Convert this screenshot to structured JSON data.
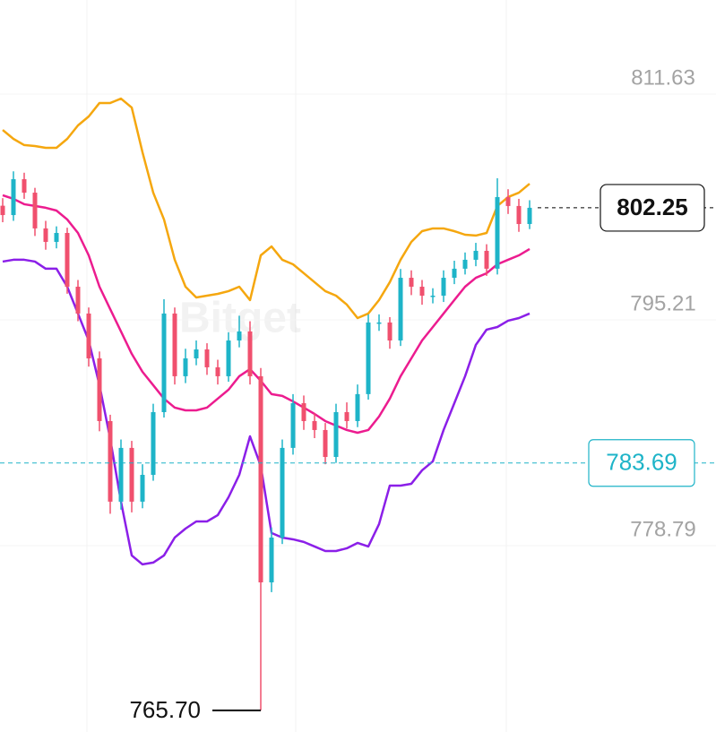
{
  "chart_data": {
    "type": "candlestick",
    "watermark": "Bitget",
    "ylim": [
      764.13,
      817.36
    ],
    "yticks": [
      811.63,
      795.21,
      778.79
    ],
    "grid": true,
    "up_color": "#1eb4c8",
    "down_color": "#f0506e",
    "open": [
      802.4,
      801.72,
      804.33,
      803.35,
      800.75,
      799.77,
      800.42,
      796.51,
      794.56,
      791.3,
      786.74,
      780.88,
      784.79,
      780.88,
      782.83,
      787.39,
      794.56,
      790.0,
      791.3,
      791.95,
      790.65,
      790.0,
      792.6,
      793.26,
      790.0,
      775.01,
      778.27,
      784.79,
      788.04,
      786.74,
      786.09,
      784.13,
      787.39,
      786.74,
      788.7,
      793.91,
      793.91,
      792.6,
      797.16,
      796.51,
      795.86,
      795.86,
      797.16,
      797.82,
      798.47,
      799.12,
      797.82,
      803.03,
      802.38,
      801.07
    ],
    "high": [
      802.95,
      804.9,
      804.8,
      803.7,
      801.3,
      800.9,
      800.8,
      797.0,
      795.0,
      791.8,
      787.2,
      785.4,
      785.3,
      783.6,
      788.0,
      795.6,
      795.0,
      792.0,
      792.6,
      792.4,
      791.2,
      793.2,
      794.4,
      794.0,
      790.6,
      779.0,
      785.4,
      788.7,
      788.6,
      787.3,
      786.6,
      788.0,
      788.1,
      789.4,
      794.5,
      794.5,
      794.3,
      797.8,
      797.7,
      797.0,
      796.4,
      797.7,
      798.4,
      799.0,
      799.7,
      799.6,
      804.4,
      803.6,
      802.9,
      802.8
    ],
    "low": [
      801.2,
      801.3,
      802.9,
      800.2,
      799.2,
      799.3,
      796.0,
      794.0,
      790.7,
      786.0,
      780.0,
      780.3,
      780.1,
      780.4,
      782.4,
      787.0,
      789.4,
      789.5,
      790.8,
      790.1,
      789.4,
      789.6,
      792.1,
      789.4,
      765.7,
      774.3,
      777.8,
      784.3,
      786.1,
      785.5,
      783.6,
      783.7,
      786.2,
      786.3,
      788.3,
      793.3,
      792.0,
      792.2,
      795.9,
      795.2,
      795.3,
      795.4,
      796.7,
      797.4,
      798.0,
      797.3,
      797.4,
      801.8,
      800.5,
      800.7
    ],
    "close": [
      801.72,
      804.33,
      803.35,
      800.75,
      799.77,
      800.42,
      796.51,
      794.56,
      791.3,
      786.74,
      780.88,
      784.79,
      780.88,
      782.83,
      787.39,
      794.56,
      790.0,
      791.3,
      791.95,
      790.65,
      790.0,
      792.6,
      793.26,
      790.0,
      775.01,
      778.27,
      784.79,
      788.04,
      786.74,
      786.09,
      784.13,
      787.39,
      786.74,
      788.7,
      793.91,
      793.91,
      792.6,
      797.16,
      796.51,
      795.86,
      795.86,
      797.16,
      797.82,
      798.47,
      799.12,
      797.82,
      803.03,
      802.38,
      801.07,
      802.25
    ],
    "low_label": "765.70",
    "price_line": 783.69,
    "price_line_color": "#1eb4c8",
    "bands": [
      {
        "color": "#f5a70f",
        "values": [
          807.91,
          807.26,
          806.81,
          806.74,
          806.61,
          806.61,
          807.26,
          808.24,
          808.89,
          809.87,
          809.87,
          810.19,
          809.54,
          806.29,
          803.35,
          801.4,
          798.47,
          796.51,
          795.73,
          795.86,
          795.99,
          796.19,
          796.51,
          795.54,
          798.79,
          799.44,
          798.47,
          798.14,
          797.49,
          796.84,
          796.19,
          795.86,
          795.21,
          794.23,
          794.56,
          795.54,
          796.84,
          798.47,
          799.77,
          800.55,
          800.75,
          800.75,
          800.55,
          800.29,
          800.23,
          800.42,
          802.38,
          803.03,
          803.35,
          804.0
        ]
      },
      {
        "color": "#ec1c8f",
        "values": [
          803.16,
          802.9,
          802.51,
          802.38,
          802.25,
          802.05,
          801.4,
          800.42,
          798.79,
          796.51,
          794.88,
          793.26,
          791.63,
          790.32,
          789.35,
          788.37,
          787.72,
          787.52,
          787.52,
          787.72,
          788.37,
          789.02,
          790.0,
          790.52,
          789.67,
          788.7,
          788.57,
          788.17,
          787.72,
          787.26,
          786.74,
          786.41,
          786.09,
          785.89,
          786.09,
          787.07,
          788.37,
          790.0,
          791.3,
          792.6,
          793.58,
          794.56,
          795.54,
          796.51,
          797.16,
          797.49,
          798.14,
          798.47,
          798.79,
          799.25
        ]
      },
      {
        "color": "#8b1fe8",
        "values": [
          798.34,
          798.47,
          798.47,
          798.34,
          797.82,
          797.82,
          796.51,
          794.56,
          792.6,
          789.35,
          785.44,
          780.88,
          776.97,
          776.32,
          776.45,
          776.97,
          778.27,
          778.92,
          779.44,
          779.44,
          779.9,
          781.2,
          782.83,
          785.63,
          783.48,
          778.6,
          778.27,
          778.14,
          777.95,
          777.62,
          777.29,
          777.29,
          777.49,
          777.88,
          777.62,
          779.25,
          782.05,
          782.05,
          782.18,
          783.16,
          783.81,
          786.09,
          788.04,
          790.0,
          792.28,
          793.39,
          793.58,
          794.04,
          794.23,
          794.56
        ]
      }
    ]
  }
}
